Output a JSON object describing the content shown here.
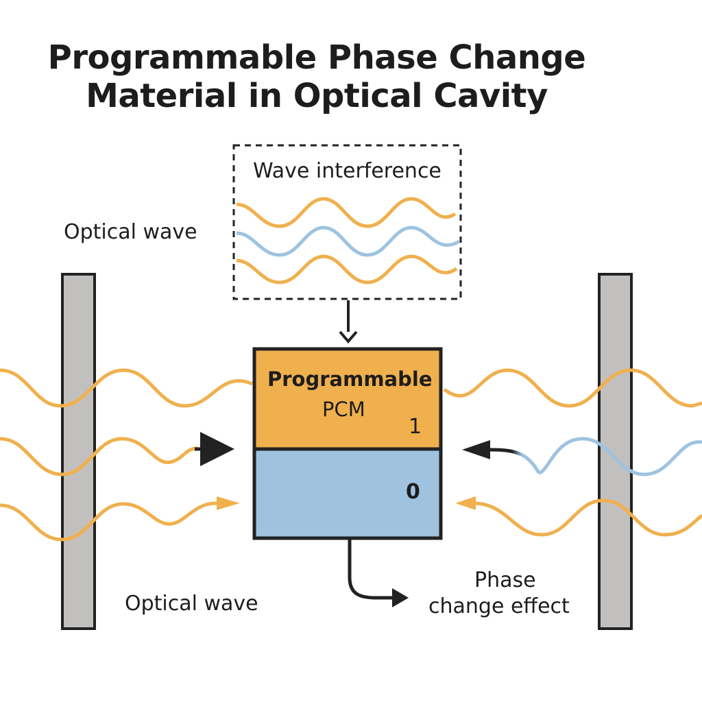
{
  "title": {
    "line1": "Programmable Phase Change",
    "line2": "Material in Optical Cavity"
  },
  "labels": {
    "optical_wave_top": "Optical wave",
    "optical_wave_bottom": "Optical wave",
    "wave_interference": "Wave interference",
    "pcm_line1": "Programmable",
    "pcm_line2": "PCM",
    "state_1": "1",
    "state_0": "0",
    "phase_line1": "Phase",
    "phase_line2": "change effect"
  },
  "colors": {
    "orange_wave": "#f0b04e",
    "blue_wave": "#9ec3e0",
    "pcm_top_fill": "#f0b04e",
    "pcm_bottom_fill": "#9fc2df",
    "mirror_fill": "#c2c0be",
    "outline": "#222222"
  }
}
